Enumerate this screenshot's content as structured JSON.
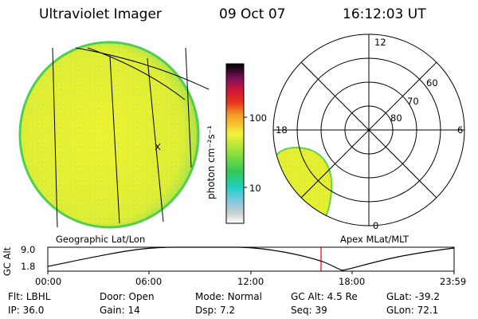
{
  "header": {
    "instrument": "Ultraviolet Imager",
    "date": "09 Oct 07",
    "time": "16:12:03 UT"
  },
  "colorbar": {
    "unit_label": "photon cm⁻²s⁻¹",
    "ticks": [
      {
        "label": "100",
        "value": 100
      },
      {
        "label": "10",
        "value": 10
      }
    ]
  },
  "polar_plot": {
    "mlt_labels": {
      "top": "12",
      "left": "18",
      "right": "6",
      "bottom": "0"
    },
    "lat_labels": [
      "60",
      "70",
      "80"
    ]
  },
  "plot_titles": {
    "left": "Geographic Lat/Lon",
    "right": "Apex MLat/MLT"
  },
  "altitude_plot": {
    "axis_label": "GC Alt",
    "y_ticks": [
      "9.0",
      "1.8"
    ],
    "x_ticks": [
      "00:00",
      "06:00",
      "12:00",
      "18:00",
      "23:59"
    ],
    "marker_color": "#dd0000"
  },
  "info": {
    "row1": [
      {
        "key": "Flt:",
        "value": "LBHL"
      },
      {
        "key": "Door:",
        "value": "Open"
      },
      {
        "key": "Mode:",
        "value": "Normal"
      },
      {
        "key": "GC Alt:",
        "value": "4.5 Re"
      },
      {
        "key": "GLat:",
        "value": "-39.2"
      }
    ],
    "row2": [
      {
        "key": "IP:",
        "value": "36.0"
      },
      {
        "key": "Gain:",
        "value": "14"
      },
      {
        "key": "Dsp:",
        "value": "7.2"
      },
      {
        "key": "Seq:",
        "value": "39"
      },
      {
        "key": "GLon:",
        "value": "72.1"
      }
    ]
  },
  "colors": {
    "aurora_yellow": "#e6ee2a",
    "limb_green": "#5fd24a",
    "grid": "#000000"
  }
}
